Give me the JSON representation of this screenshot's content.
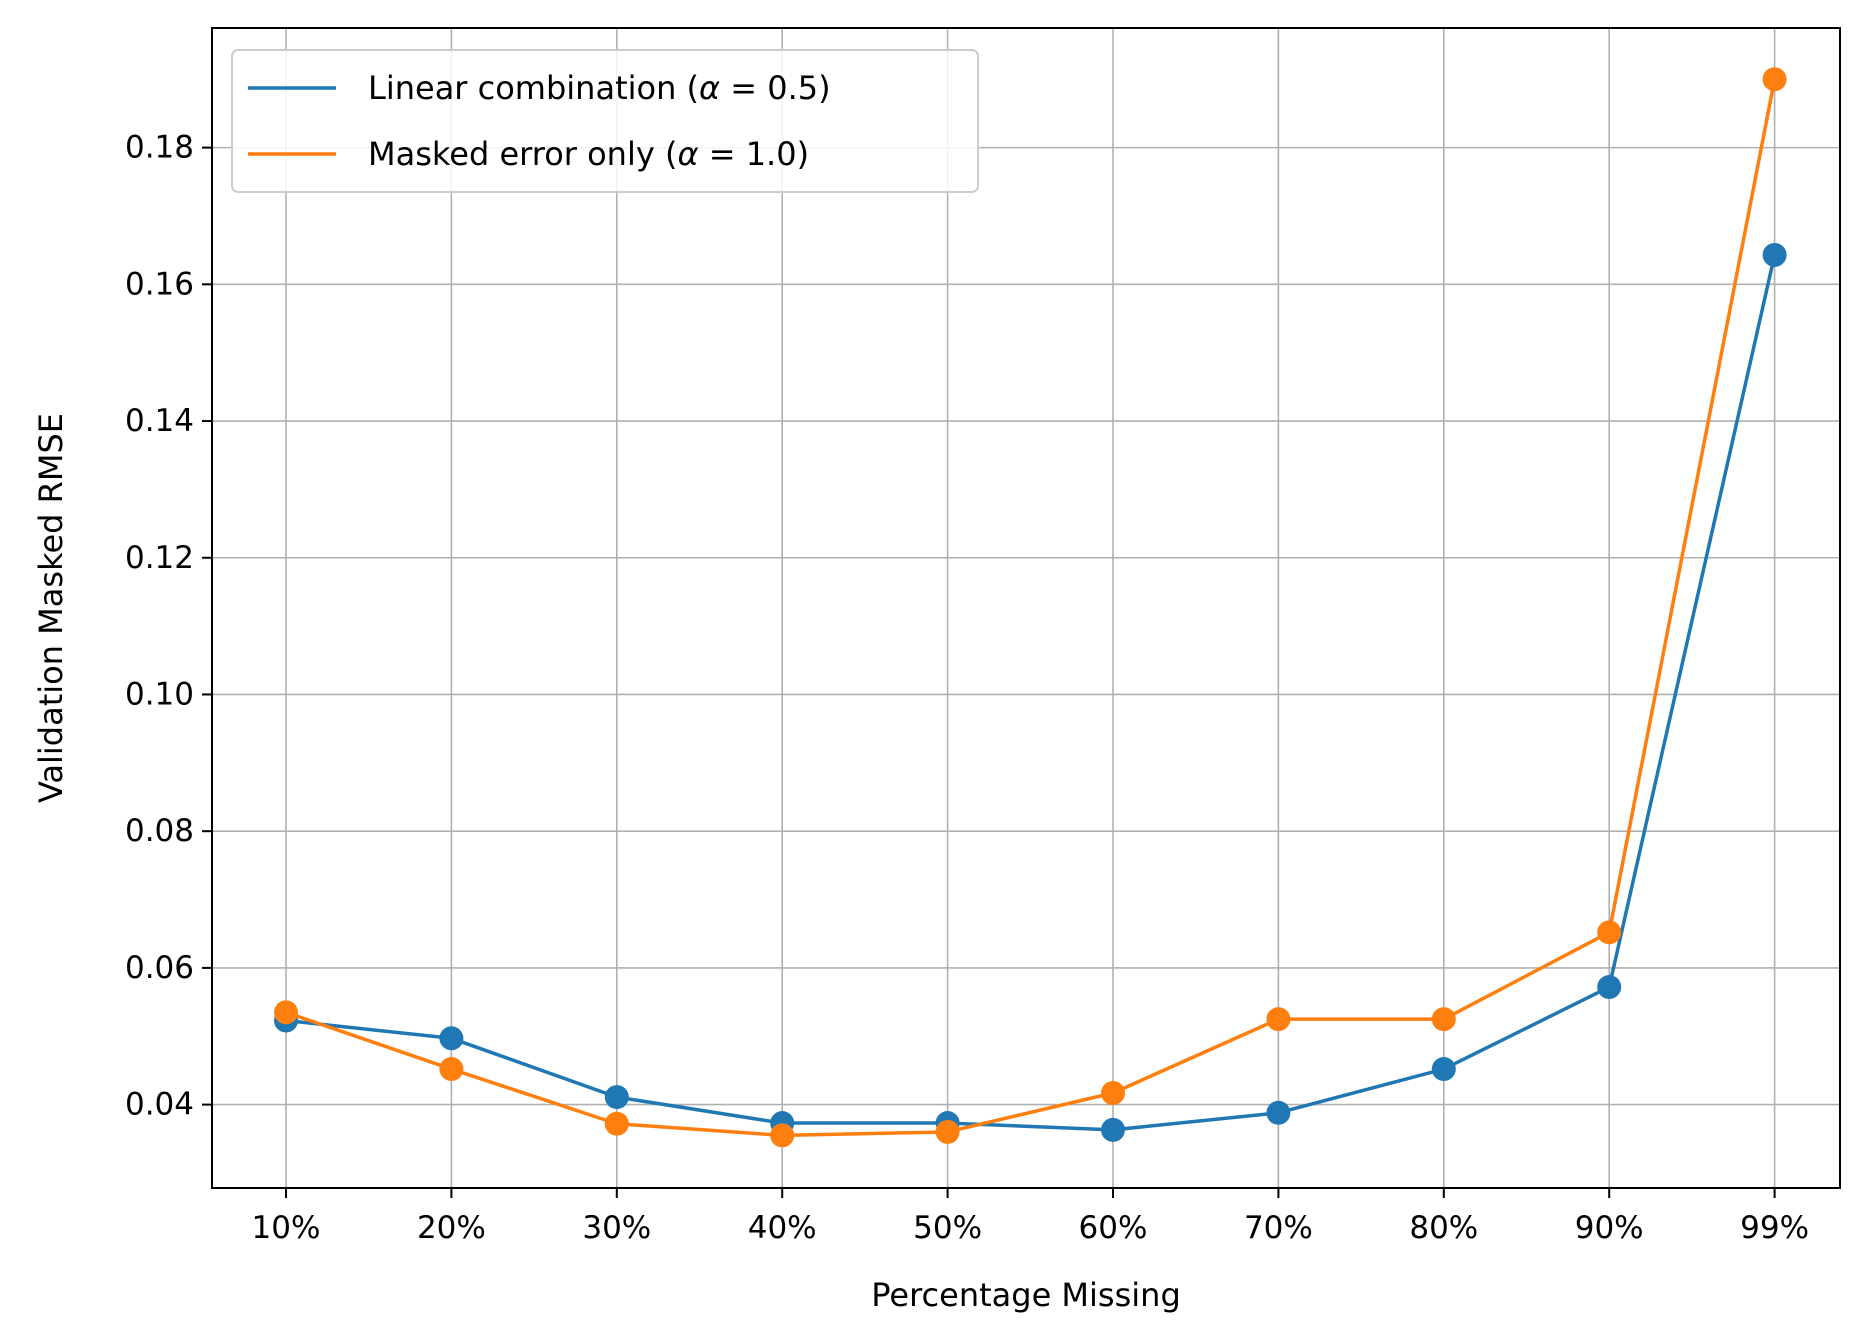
{
  "chart_data": {
    "type": "line",
    "title": "",
    "xlabel": "Percentage Missing",
    "ylabel": "Validation Masked RMSE",
    "categories": [
      "10%",
      "20%",
      "30%",
      "40%",
      "50%",
      "60%",
      "70%",
      "80%",
      "90%",
      "99%"
    ],
    "ylim": [
      0.0278,
      0.1975
    ],
    "yticks": [
      0.04,
      0.06,
      0.08,
      0.1,
      0.12,
      0.14,
      0.16,
      0.18
    ],
    "ytick_labels": [
      "0.04",
      "0.06",
      "0.08",
      "0.10",
      "0.12",
      "0.14",
      "0.16",
      "0.18"
    ],
    "grid": true,
    "legend_position": "top-left",
    "series": [
      {
        "name_prefix": "Linear combination (",
        "name_alpha": "α",
        "name_suffix": " = 0.5)",
        "color": "#1f77b4",
        "marker": "circle",
        "values": [
          0.0523,
          0.0497,
          0.0411,
          0.0373,
          0.0373,
          0.0363,
          0.0388,
          0.0452,
          0.0572,
          0.1643
        ]
      },
      {
        "name_prefix": "Masked error only (",
        "name_alpha": "α",
        "name_suffix": " = 1.0)",
        "color": "#ff7f0e",
        "marker": "circle",
        "values": [
          0.0535,
          0.0452,
          0.0372,
          0.0355,
          0.036,
          0.0417,
          0.0525,
          0.0525,
          0.0652,
          0.19
        ]
      }
    ]
  }
}
